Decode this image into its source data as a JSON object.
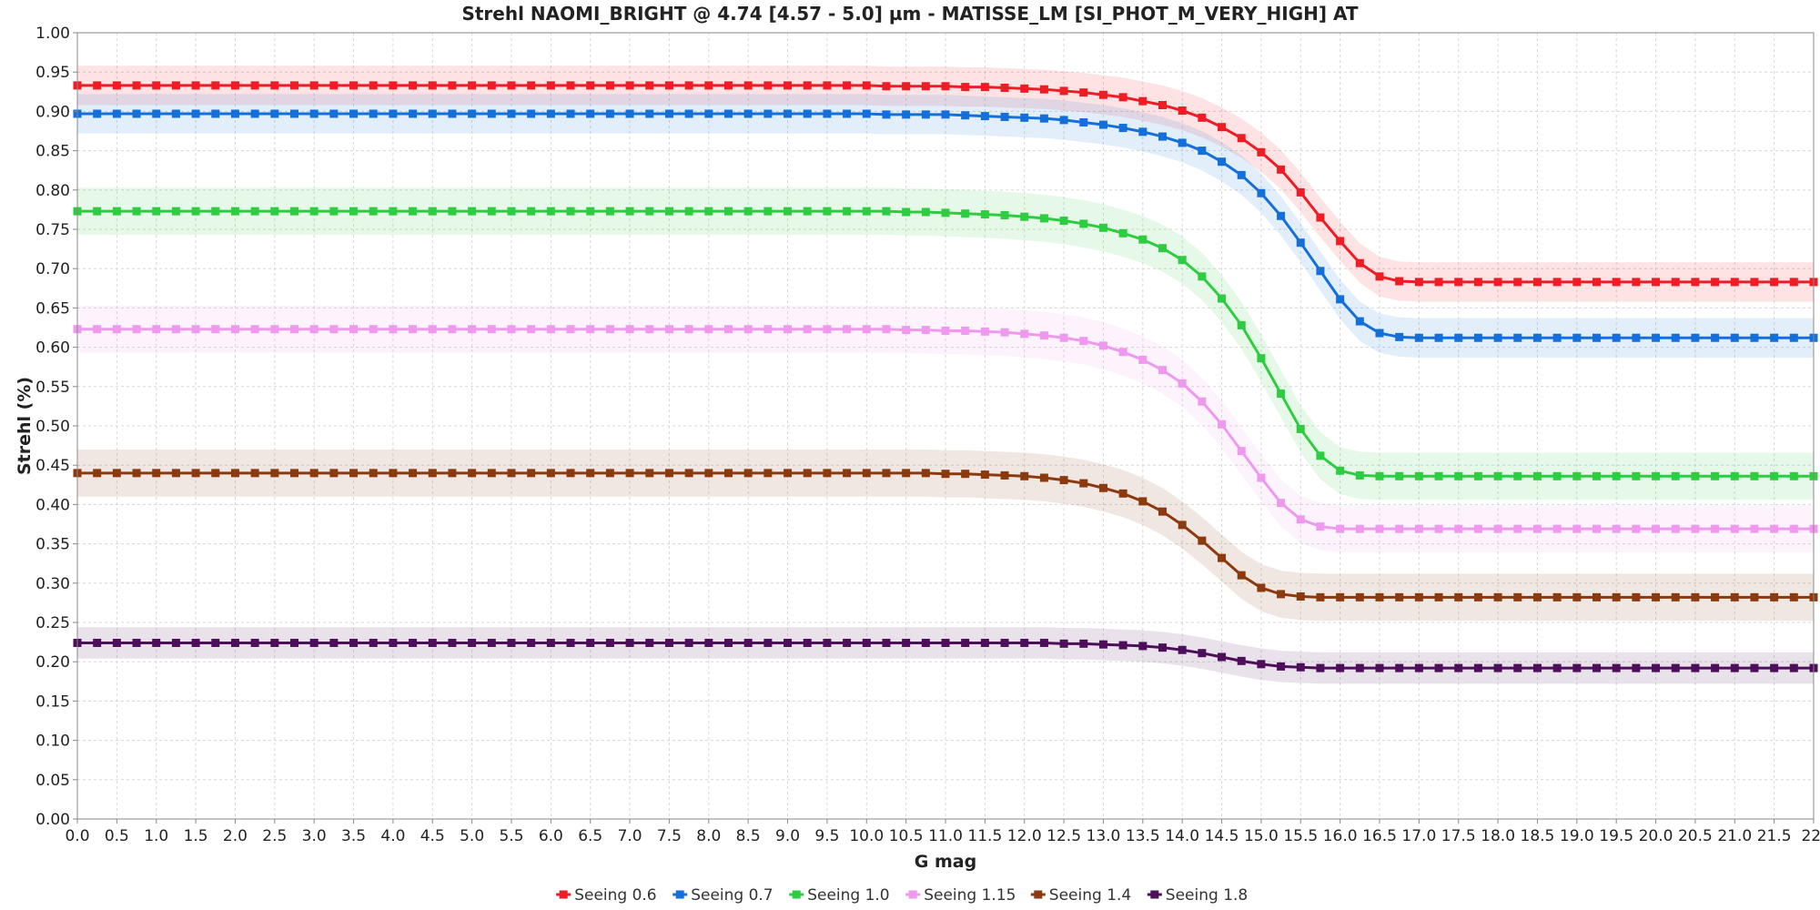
{
  "chart_data": {
    "type": "line",
    "title": "Strehl NAOMI_BRIGHT @ 4.74 [4.57 - 5.0] µm - MATISSE_LM [SI_PHOT_M_VERY_HIGH] AT",
    "xlabel": "G mag",
    "ylabel": "Strehl (%)",
    "xlim": [
      0,
      22
    ],
    "ylim": [
      0,
      1
    ],
    "x_ticks": [
      "0.0",
      "0.5",
      "1.0",
      "1.5",
      "2.0",
      "2.5",
      "3.0",
      "3.5",
      "4.0",
      "4.5",
      "5.0",
      "5.5",
      "6.0",
      "6.5",
      "7.0",
      "7.5",
      "8.0",
      "8.5",
      "9.0",
      "9.5",
      "10.0",
      "10.5",
      "11.0",
      "11.5",
      "12.0",
      "12.5",
      "13.0",
      "13.5",
      "14.0",
      "14.5",
      "15.0",
      "15.5",
      "16.0",
      "16.5",
      "17.0",
      "17.5",
      "18.0",
      "18.5",
      "19.0",
      "19.5",
      "20.0",
      "20.5",
      "21.0",
      "21.5",
      "22."
    ],
    "y_ticks": [
      "0.00",
      "0.05",
      "0.10",
      "0.15",
      "0.20",
      "0.25",
      "0.30",
      "0.35",
      "0.40",
      "0.45",
      "0.50",
      "0.55",
      "0.60",
      "0.65",
      "0.70",
      "0.75",
      "0.80",
      "0.85",
      "0.90",
      "0.95",
      "1.00"
    ],
    "grid": true,
    "legend_position": "bottom",
    "x": [
      0.0,
      0.25,
      0.5,
      0.75,
      1.0,
      1.25,
      1.5,
      1.75,
      2.0,
      2.25,
      2.5,
      2.75,
      3.0,
      3.25,
      3.5,
      3.75,
      4.0,
      4.25,
      4.5,
      4.75,
      5.0,
      5.25,
      5.5,
      5.75,
      6.0,
      6.25,
      6.5,
      6.75,
      7.0,
      7.25,
      7.5,
      7.75,
      8.0,
      8.25,
      8.5,
      8.75,
      9.0,
      9.25,
      9.5,
      9.75,
      10.0,
      10.25,
      10.5,
      10.75,
      11.0,
      11.25,
      11.5,
      11.75,
      12.0,
      12.25,
      12.5,
      12.75,
      13.0,
      13.25,
      13.5,
      13.75,
      14.0,
      14.25,
      14.5,
      14.75,
      15.0,
      15.25,
      15.5,
      15.75,
      16.0,
      16.25,
      16.5,
      16.75,
      17.0,
      17.25,
      17.5,
      17.75,
      18.0,
      18.25,
      18.5,
      18.75,
      19.0,
      19.25,
      19.5,
      19.75,
      20.0,
      20.25,
      20.5,
      20.75,
      21.0,
      21.25,
      21.5,
      21.75,
      22.0
    ],
    "series": [
      {
        "name": "Seeing 0.6",
        "color": "#ee1c25",
        "band": 0.025,
        "values": [
          0.933,
          0.933,
          0.933,
          0.933,
          0.933,
          0.933,
          0.933,
          0.933,
          0.933,
          0.933,
          0.933,
          0.933,
          0.933,
          0.933,
          0.933,
          0.933,
          0.933,
          0.933,
          0.933,
          0.933,
          0.933,
          0.933,
          0.933,
          0.933,
          0.933,
          0.933,
          0.933,
          0.933,
          0.933,
          0.933,
          0.933,
          0.933,
          0.933,
          0.933,
          0.933,
          0.933,
          0.933,
          0.933,
          0.933,
          0.933,
          0.933,
          0.932,
          0.932,
          0.932,
          0.932,
          0.931,
          0.931,
          0.93,
          0.929,
          0.928,
          0.926,
          0.924,
          0.921,
          0.918,
          0.913,
          0.908,
          0.901,
          0.892,
          0.88,
          0.866,
          0.848,
          0.826,
          0.797,
          0.765,
          0.735,
          0.707,
          0.69,
          0.684,
          0.683,
          0.683,
          0.683,
          0.683,
          0.683,
          0.683,
          0.683,
          0.683,
          0.683,
          0.683,
          0.683,
          0.683,
          0.683,
          0.683,
          0.683,
          0.683,
          0.683,
          0.683,
          0.683,
          0.683,
          0.683
        ]
      },
      {
        "name": "Seeing 0.7",
        "color": "#1470d8",
        "band": 0.025,
        "values": [
          0.897,
          0.897,
          0.897,
          0.897,
          0.897,
          0.897,
          0.897,
          0.897,
          0.897,
          0.897,
          0.897,
          0.897,
          0.897,
          0.897,
          0.897,
          0.897,
          0.897,
          0.897,
          0.897,
          0.897,
          0.897,
          0.897,
          0.897,
          0.897,
          0.897,
          0.897,
          0.897,
          0.897,
          0.897,
          0.897,
          0.897,
          0.897,
          0.897,
          0.897,
          0.897,
          0.897,
          0.897,
          0.897,
          0.897,
          0.897,
          0.897,
          0.896,
          0.896,
          0.896,
          0.896,
          0.895,
          0.894,
          0.893,
          0.892,
          0.891,
          0.889,
          0.886,
          0.883,
          0.879,
          0.874,
          0.868,
          0.86,
          0.85,
          0.836,
          0.819,
          0.796,
          0.767,
          0.733,
          0.697,
          0.661,
          0.633,
          0.618,
          0.613,
          0.612,
          0.612,
          0.612,
          0.612,
          0.612,
          0.612,
          0.612,
          0.612,
          0.612,
          0.612,
          0.612,
          0.612,
          0.612,
          0.612,
          0.612,
          0.612,
          0.612,
          0.612,
          0.612,
          0.612,
          0.612
        ]
      },
      {
        "name": "Seeing 1.0",
        "color": "#2ecc40",
        "band": 0.03,
        "values": [
          0.773,
          0.773,
          0.773,
          0.773,
          0.773,
          0.773,
          0.773,
          0.773,
          0.773,
          0.773,
          0.773,
          0.773,
          0.773,
          0.773,
          0.773,
          0.773,
          0.773,
          0.773,
          0.773,
          0.773,
          0.773,
          0.773,
          0.773,
          0.773,
          0.773,
          0.773,
          0.773,
          0.773,
          0.773,
          0.773,
          0.773,
          0.773,
          0.773,
          0.773,
          0.773,
          0.773,
          0.773,
          0.773,
          0.773,
          0.773,
          0.773,
          0.773,
          0.772,
          0.772,
          0.771,
          0.77,
          0.769,
          0.768,
          0.766,
          0.764,
          0.761,
          0.757,
          0.752,
          0.745,
          0.737,
          0.726,
          0.711,
          0.69,
          0.662,
          0.628,
          0.586,
          0.541,
          0.496,
          0.462,
          0.443,
          0.437,
          0.436,
          0.436,
          0.436,
          0.436,
          0.436,
          0.436,
          0.436,
          0.436,
          0.436,
          0.436,
          0.436,
          0.436,
          0.436,
          0.436,
          0.436,
          0.436,
          0.436,
          0.436,
          0.436,
          0.436,
          0.436,
          0.436,
          0.436
        ]
      },
      {
        "name": "Seeing 1.15",
        "color": "#ee99ee",
        "band": 0.03,
        "values": [
          0.623,
          0.623,
          0.623,
          0.623,
          0.623,
          0.623,
          0.623,
          0.623,
          0.623,
          0.623,
          0.623,
          0.623,
          0.623,
          0.623,
          0.623,
          0.623,
          0.623,
          0.623,
          0.623,
          0.623,
          0.623,
          0.623,
          0.623,
          0.623,
          0.623,
          0.623,
          0.623,
          0.623,
          0.623,
          0.623,
          0.623,
          0.623,
          0.623,
          0.623,
          0.623,
          0.623,
          0.623,
          0.623,
          0.623,
          0.623,
          0.623,
          0.623,
          0.622,
          0.622,
          0.621,
          0.621,
          0.62,
          0.619,
          0.617,
          0.615,
          0.612,
          0.608,
          0.602,
          0.594,
          0.584,
          0.571,
          0.554,
          0.531,
          0.502,
          0.468,
          0.434,
          0.402,
          0.381,
          0.372,
          0.369,
          0.369,
          0.369,
          0.369,
          0.369,
          0.369,
          0.369,
          0.369,
          0.369,
          0.369,
          0.369,
          0.369,
          0.369,
          0.369,
          0.369,
          0.369,
          0.369,
          0.369,
          0.369,
          0.369,
          0.369,
          0.369,
          0.369,
          0.369,
          0.369
        ]
      },
      {
        "name": "Seeing 1.4",
        "color": "#8b3a0f",
        "band": 0.03,
        "values": [
          0.44,
          0.44,
          0.44,
          0.44,
          0.44,
          0.44,
          0.44,
          0.44,
          0.44,
          0.44,
          0.44,
          0.44,
          0.44,
          0.44,
          0.44,
          0.44,
          0.44,
          0.44,
          0.44,
          0.44,
          0.44,
          0.44,
          0.44,
          0.44,
          0.44,
          0.44,
          0.44,
          0.44,
          0.44,
          0.44,
          0.44,
          0.44,
          0.44,
          0.44,
          0.44,
          0.44,
          0.44,
          0.44,
          0.44,
          0.44,
          0.44,
          0.44,
          0.44,
          0.44,
          0.439,
          0.439,
          0.438,
          0.437,
          0.436,
          0.434,
          0.431,
          0.427,
          0.421,
          0.414,
          0.404,
          0.391,
          0.374,
          0.354,
          0.332,
          0.31,
          0.294,
          0.286,
          0.283,
          0.282,
          0.282,
          0.282,
          0.282,
          0.282,
          0.282,
          0.282,
          0.282,
          0.282,
          0.282,
          0.282,
          0.282,
          0.282,
          0.282,
          0.282,
          0.282,
          0.282,
          0.282,
          0.282,
          0.282,
          0.282,
          0.282,
          0.282,
          0.282,
          0.282,
          0.282
        ]
      },
      {
        "name": "Seeing 1.8",
        "color": "#4e0f5a",
        "band": 0.02,
        "values": [
          0.224,
          0.224,
          0.224,
          0.224,
          0.224,
          0.224,
          0.224,
          0.224,
          0.224,
          0.224,
          0.224,
          0.224,
          0.224,
          0.224,
          0.224,
          0.224,
          0.224,
          0.224,
          0.224,
          0.224,
          0.224,
          0.224,
          0.224,
          0.224,
          0.224,
          0.224,
          0.224,
          0.224,
          0.224,
          0.224,
          0.224,
          0.224,
          0.224,
          0.224,
          0.224,
          0.224,
          0.224,
          0.224,
          0.224,
          0.224,
          0.224,
          0.224,
          0.224,
          0.224,
          0.224,
          0.224,
          0.224,
          0.224,
          0.224,
          0.224,
          0.223,
          0.223,
          0.222,
          0.221,
          0.22,
          0.218,
          0.215,
          0.211,
          0.206,
          0.201,
          0.197,
          0.194,
          0.193,
          0.192,
          0.192,
          0.192,
          0.192,
          0.192,
          0.192,
          0.192,
          0.192,
          0.192,
          0.192,
          0.192,
          0.192,
          0.192,
          0.192,
          0.192,
          0.192,
          0.192,
          0.192,
          0.192,
          0.192,
          0.192,
          0.192,
          0.192,
          0.192,
          0.192,
          0.192
        ]
      }
    ]
  }
}
